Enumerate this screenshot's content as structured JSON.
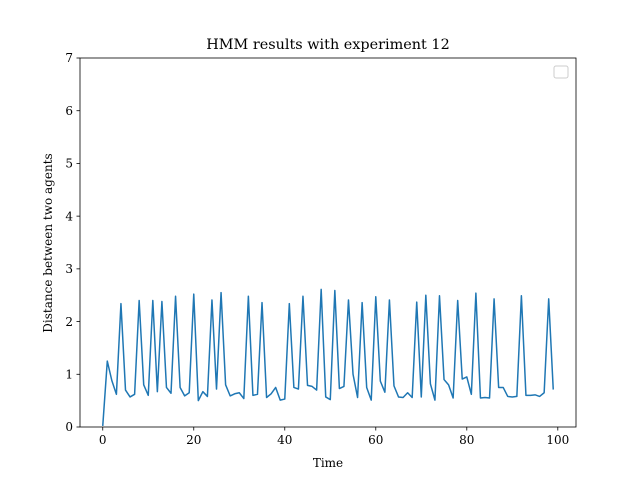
{
  "chart_data": {
    "type": "line",
    "title": "HMM results with experiment 12",
    "xlabel": "Time",
    "ylabel": "Distance between two agents",
    "xlim": [
      -5,
      104
    ],
    "ylim": [
      0,
      7
    ],
    "xticks": [
      0,
      20,
      40,
      60,
      80,
      100
    ],
    "yticks": [
      0,
      1,
      2,
      3,
      4,
      5,
      6,
      7
    ],
    "grid": false,
    "legend": {
      "placement": "top-right",
      "entries": []
    },
    "series": [
      {
        "color": "#1f77b4",
        "x": [
          0,
          1,
          2,
          3,
          4,
          5,
          6,
          7,
          8,
          9,
          10,
          11,
          12,
          13,
          14,
          15,
          16,
          17,
          18,
          19,
          20,
          21,
          22,
          23,
          24,
          25,
          26,
          27,
          28,
          29,
          30,
          31,
          32,
          33,
          34,
          35,
          36,
          37,
          38,
          39,
          40,
          41,
          42,
          43,
          44,
          45,
          46,
          47,
          48,
          49,
          50,
          51,
          52,
          53,
          54,
          55,
          56,
          57,
          58,
          59,
          60,
          61,
          62,
          63,
          64,
          65,
          66,
          67,
          68,
          69,
          70,
          71,
          72,
          73,
          74,
          75,
          76,
          77,
          78,
          79,
          80,
          81,
          82,
          83,
          84,
          85,
          86,
          87,
          88,
          89,
          90,
          91,
          92,
          93,
          94,
          95,
          96,
          97,
          98,
          99
        ],
        "y": [
          0.02,
          1.25,
          0.88,
          0.62,
          2.34,
          0.7,
          0.57,
          0.62,
          2.4,
          0.8,
          0.6,
          2.4,
          0.67,
          2.38,
          0.75,
          0.64,
          2.48,
          0.75,
          0.59,
          0.65,
          2.52,
          0.5,
          0.67,
          0.58,
          2.41,
          0.72,
          2.55,
          0.8,
          0.59,
          0.63,
          0.65,
          0.54,
          2.48,
          0.6,
          0.62,
          2.36,
          0.56,
          0.63,
          0.75,
          0.51,
          0.53,
          2.34,
          0.75,
          0.72,
          2.48,
          0.79,
          0.77,
          0.7,
          2.61,
          0.57,
          0.52,
          2.59,
          0.73,
          0.77,
          2.41,
          1.0,
          0.56,
          2.36,
          0.75,
          0.51,
          2.47,
          0.87,
          0.66,
          2.41,
          0.78,
          0.57,
          0.56,
          0.65,
          0.56,
          2.37,
          0.57,
          2.5,
          0.82,
          0.51,
          2.49,
          0.9,
          0.8,
          0.55,
          2.4,
          0.91,
          0.95,
          0.62,
          2.54,
          0.55,
          0.56,
          0.55,
          2.43,
          0.75,
          0.75,
          0.58,
          0.57,
          0.58,
          2.49,
          0.6,
          0.6,
          0.61,
          0.58,
          0.65,
          2.43,
          0.71
        ]
      }
    ]
  }
}
